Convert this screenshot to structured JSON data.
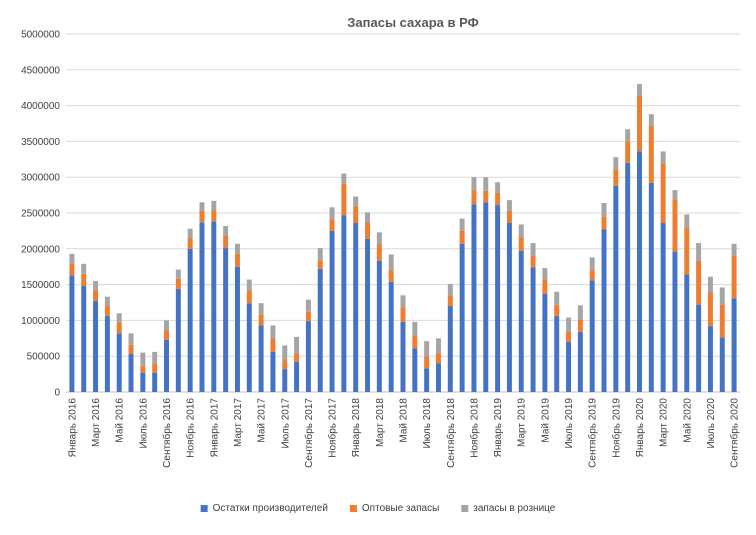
{
  "chart_data": {
    "type": "bar",
    "stacked": true,
    "title": "Запасы сахара в РФ",
    "xlabel": "",
    "ylabel": "",
    "ylim": [
      0,
      5000000
    ],
    "yticks": [
      0,
      500000,
      1000000,
      1500000,
      2000000,
      2500000,
      3000000,
      3500000,
      4000000,
      4500000,
      5000000
    ],
    "grid": true,
    "legend_position": "bottom",
    "categories": [
      "2016-01",
      "2016-02",
      "2016-03",
      "2016-04",
      "2016-05",
      "2016-06",
      "2016-07",
      "2016-08",
      "2016-09",
      "2016-10",
      "2016-11",
      "2016-12",
      "2017-01",
      "2017-02",
      "2017-03",
      "2017-04",
      "2017-05",
      "2017-06",
      "2017-07",
      "2017-08",
      "2017-09",
      "2017-10",
      "2017-11",
      "2017-12",
      "2018-01",
      "2018-02",
      "2018-03",
      "2018-04",
      "2018-05",
      "2018-06",
      "2018-07",
      "2018-08",
      "2018-09",
      "2018-10",
      "2018-11",
      "2018-12",
      "2019-01",
      "2019-02",
      "2019-03",
      "2019-04",
      "2019-05",
      "2019-06",
      "2019-07",
      "2019-08",
      "2019-09",
      "2019-10",
      "2019-11",
      "2019-12",
      "2020-01",
      "2020-02",
      "2020-03",
      "2020-04",
      "2020-05",
      "2020-06",
      "2020-07",
      "2020-08",
      "2020-09"
    ],
    "x_tick_labels": [
      "Январь 2016",
      "",
      "Март 2016",
      "",
      "Май 2016",
      "",
      "Июль 2016",
      "",
      "Сентябрь 2016",
      "",
      "Ноябрь 2016",
      "",
      "Январь 2017",
      "",
      "Март 2017",
      "",
      "Май 2017",
      "",
      "Июль 2017",
      "",
      "Сентябрь 2017",
      "",
      "Ноябрь 2017",
      "",
      "Январь 2018",
      "",
      "Март 2018",
      "",
      "Май 2018",
      "",
      "Июль 2018",
      "",
      "Сентябрь 2018",
      "",
      "Ноябрь 2018",
      "",
      "Январь 2019",
      "",
      "Март 2019",
      "",
      "Май 2019",
      "",
      "Июль 2019",
      "",
      "Сентябрь 2019",
      "",
      "Ноябрь 2019",
      "",
      "Январь 2020",
      "",
      "Март 2020",
      "",
      "Май 2020",
      "",
      "Июль 2020",
      "",
      "Сентябрь 2020"
    ],
    "series": [
      {
        "name": "Остатки производителей",
        "color": "#4472C4",
        "values": [
          1630000,
          1480000,
          1270000,
          1060000,
          820000,
          530000,
          270000,
          270000,
          730000,
          1440000,
          2000000,
          2370000,
          2380000,
          2010000,
          1750000,
          1240000,
          930000,
          560000,
          320000,
          420000,
          990000,
          1720000,
          2250000,
          2470000,
          2360000,
          2140000,
          1830000,
          1540000,
          980000,
          610000,
          330000,
          400000,
          1200000,
          2070000,
          2620000,
          2650000,
          2610000,
          2360000,
          1970000,
          1740000,
          1370000,
          1060000,
          700000,
          840000,
          1560000,
          2270000,
          2880000,
          3200000,
          3360000,
          2920000,
          2360000,
          1960000,
          1640000,
          1220000,
          920000,
          760000,
          1310000
        ]
      },
      {
        "name": "Оптовые запасы",
        "color": "#ED7D31",
        "values": [
          160000,
          170000,
          150000,
          140000,
          150000,
          130000,
          90000,
          120000,
          130000,
          140000,
          150000,
          160000,
          160000,
          170000,
          180000,
          180000,
          150000,
          180000,
          120000,
          120000,
          130000,
          120000,
          160000,
          440000,
          230000,
          230000,
          230000,
          160000,
          200000,
          180000,
          170000,
          140000,
          140000,
          180000,
          200000,
          160000,
          170000,
          170000,
          190000,
          160000,
          200000,
          160000,
          140000,
          170000,
          140000,
          180000,
          230000,
          300000,
          780000,
          800000,
          830000,
          730000,
          650000,
          610000,
          470000,
          460000,
          600000
        ]
      },
      {
        "name": "запасы в рознице",
        "color": "#A5A5A5",
        "values": [
          140000,
          140000,
          130000,
          130000,
          130000,
          160000,
          190000,
          170000,
          140000,
          130000,
          130000,
          120000,
          130000,
          140000,
          140000,
          150000,
          160000,
          190000,
          210000,
          230000,
          170000,
          170000,
          170000,
          140000,
          140000,
          140000,
          170000,
          220000,
          170000,
          190000,
          210000,
          210000,
          170000,
          170000,
          180000,
          190000,
          150000,
          150000,
          180000,
          180000,
          160000,
          180000,
          200000,
          200000,
          180000,
          190000,
          170000,
          170000,
          160000,
          160000,
          170000,
          130000,
          190000,
          250000,
          220000,
          240000,
          160000
        ]
      }
    ]
  }
}
